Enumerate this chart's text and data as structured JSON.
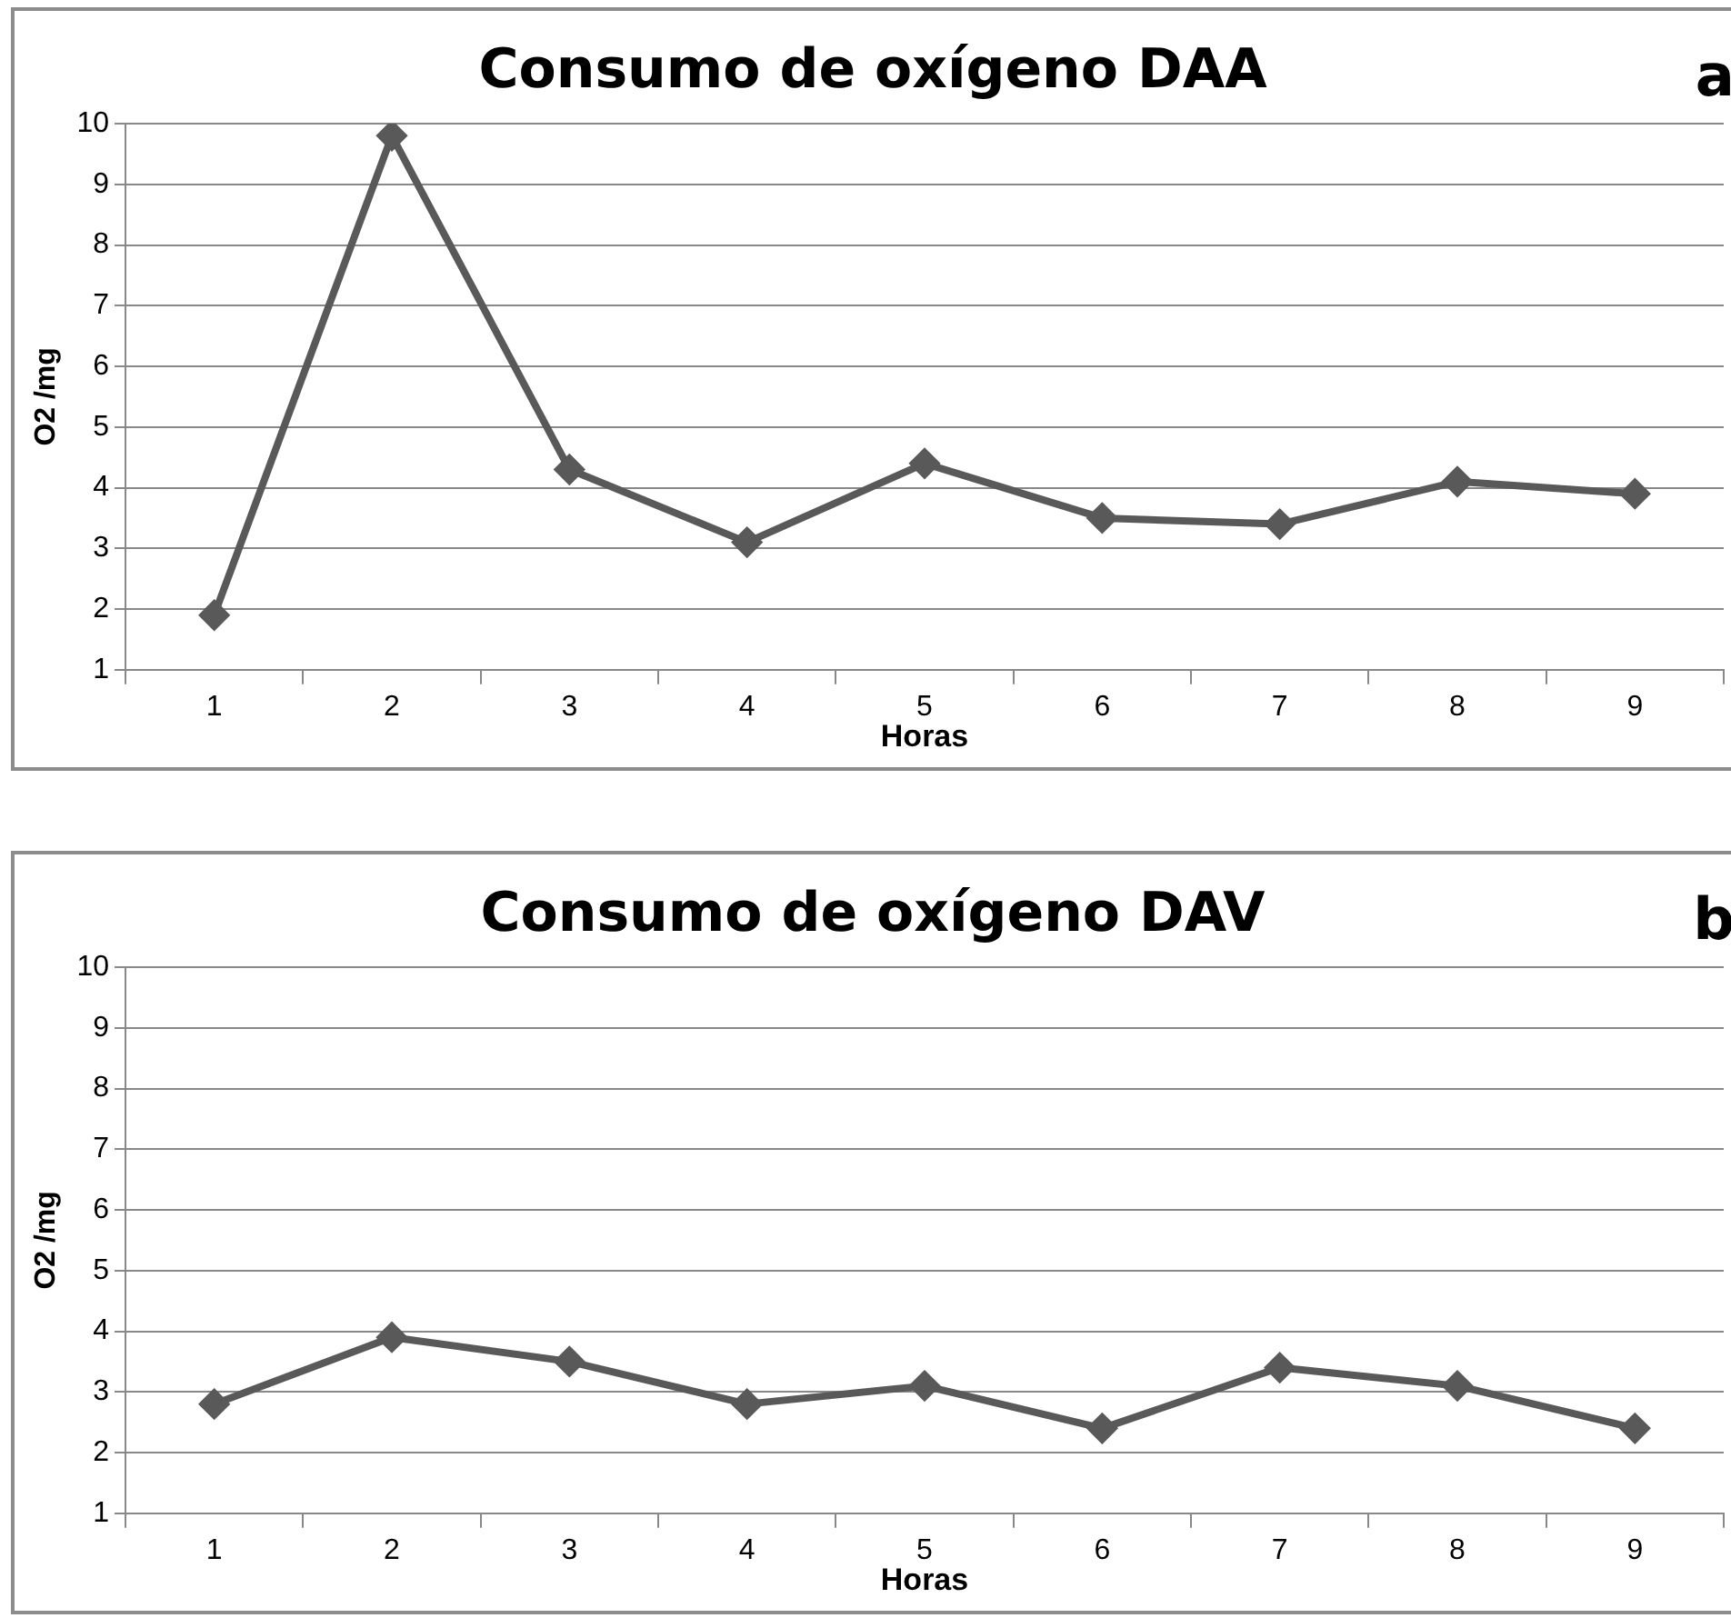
{
  "chart_data": [
    {
      "type": "line",
      "title": "Consumo de oxígeno DAA",
      "xlabel": "Horas",
      "ylabel": "O2 /mg",
      "annotations": [
        "a"
      ],
      "categories": [
        "1",
        "2",
        "3",
        "4",
        "5",
        "6",
        "7",
        "8",
        "9"
      ],
      "series": [
        {
          "color": "#595959",
          "values": [
            1.9,
            9.8,
            4.3,
            3.1,
            4.4,
            3.5,
            3.4,
            4.1,
            3.9
          ]
        }
      ],
      "ylim": [
        1,
        10
      ],
      "yticks": [
        1,
        2,
        3,
        4,
        5,
        6,
        7,
        8,
        9,
        10
      ],
      "grid": "y",
      "legend": false,
      "marker": "diamond",
      "line_style": "solid"
    },
    {
      "type": "line",
      "title": "Consumo de oxígeno DAV",
      "xlabel": "Horas",
      "ylabel": "O2 /mg",
      "annotations": [
        "b"
      ],
      "categories": [
        "1",
        "2",
        "3",
        "4",
        "5",
        "6",
        "7",
        "8",
        "9"
      ],
      "series": [
        {
          "color": "#595959",
          "values": [
            2.8,
            3.9,
            3.5,
            2.8,
            3.1,
            2.4,
            3.4,
            3.1,
            2.4
          ]
        }
      ],
      "ylim": [
        1,
        10
      ],
      "yticks": [
        1,
        2,
        3,
        4,
        5,
        6,
        7,
        8,
        9,
        10
      ],
      "grid": "y",
      "legend": false,
      "marker": "diamond",
      "line_style": "solid"
    }
  ]
}
